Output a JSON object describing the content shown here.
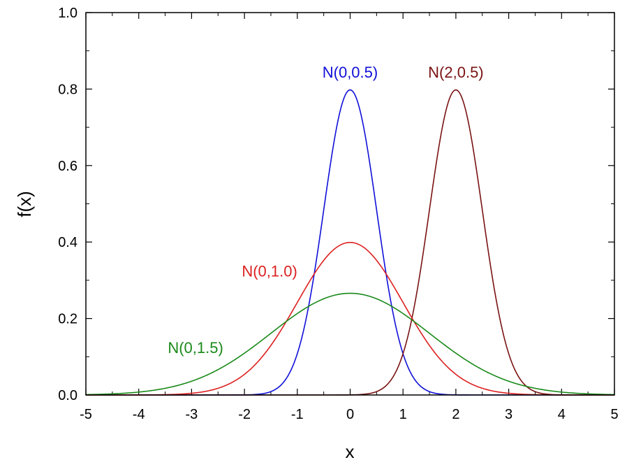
{
  "chart_data": {
    "type": "line",
    "title": "",
    "xlabel": "x",
    "ylabel": "f(x)",
    "xlim": [
      -5,
      5
    ],
    "ylim": [
      0,
      1.0
    ],
    "grid": false,
    "legend": "inline labels",
    "x_ticks": [
      "-5",
      "-4",
      "-3",
      "-2",
      "-1",
      "0",
      "1",
      "2",
      "3",
      "4",
      "5"
    ],
    "y_ticks": [
      "0.0",
      "0.2",
      "0.4",
      "0.6",
      "0.8",
      "1.0"
    ],
    "x": [
      -5,
      -4.5,
      -4,
      -3.5,
      -3,
      -2.5,
      -2,
      -1.5,
      -1,
      -0.5,
      0,
      0.5,
      1,
      1.5,
      2,
      2.5,
      3,
      3.5,
      4,
      4.5,
      5
    ],
    "series": [
      {
        "name": "N(0,0.5)",
        "color": "#1010d8",
        "mean": 0,
        "sd": 0.5,
        "values": [
          0,
          0,
          0,
          0,
          0,
          0,
          0.0003,
          0.0089,
          0.108,
          0.4839,
          0.7979,
          0.4839,
          0.108,
          0.0089,
          0.0003,
          0,
          0,
          0,
          0,
          0,
          0
        ]
      },
      {
        "name": "N(2,0.5)",
        "color": "#7a1212",
        "mean": 2,
        "sd": 0.5,
        "values": [
          0,
          0,
          0,
          0,
          0,
          0,
          0,
          0,
          0,
          0,
          0.0003,
          0.0089,
          0.108,
          0.4839,
          0.7979,
          0.4839,
          0.108,
          0.0089,
          0.0003,
          0,
          0
        ]
      },
      {
        "name": "N(0,1.0)",
        "color": "#dc2020",
        "mean": 0,
        "sd": 1.0,
        "values": [
          0,
          0,
          0.0001,
          0.0009,
          0.0044,
          0.0175,
          0.054,
          0.1295,
          0.242,
          0.3521,
          0.3989,
          0.3521,
          0.242,
          0.1295,
          0.054,
          0.0175,
          0.0044,
          0.0009,
          0.0001,
          0,
          0
        ]
      },
      {
        "name": "N(0,1.5)",
        "color": "#1a8a1a",
        "mean": 0,
        "sd": 1.5,
        "values": [
          0.001,
          0.003,
          0.0076,
          0.0174,
          0.036,
          0.0665,
          0.1093,
          0.1613,
          0.213,
          0.2516,
          0.266,
          0.2516,
          0.213,
          0.1613,
          0.1093,
          0.0665,
          0.036,
          0.0174,
          0.0076,
          0.003,
          0.001
        ]
      }
    ]
  }
}
